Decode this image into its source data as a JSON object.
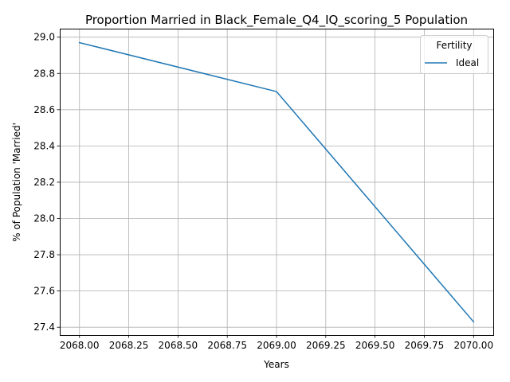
{
  "chart_data": {
    "type": "line",
    "title": "Proportion Married in Black_Female_Q4_IQ_scoring_5 Population",
    "xlabel": "Years",
    "ylabel": "% of Population 'Married'",
    "x": [
      2068,
      2069,
      2070
    ],
    "series": [
      {
        "name": "Ideal",
        "values": [
          28.97,
          28.7,
          27.43
        ],
        "color": "#1f77b4"
      }
    ],
    "xlim": [
      2067.9,
      2070.1
    ],
    "ylim": [
      27.357,
      29.047
    ],
    "x_ticks": [
      2068.0,
      2068.25,
      2068.5,
      2068.75,
      2069.0,
      2069.25,
      2069.5,
      2069.75,
      2070.0
    ],
    "x_tick_labels": [
      "2068.00",
      "2068.25",
      "2068.50",
      "2068.75",
      "2069.00",
      "2069.25",
      "2069.50",
      "2069.75",
      "2070.00"
    ],
    "y_ticks": [
      27.4,
      27.6,
      27.8,
      28.0,
      28.2,
      28.4,
      28.6,
      28.8,
      29.0
    ],
    "y_tick_labels": [
      "27.4",
      "27.6",
      "27.8",
      "28.0",
      "28.2",
      "28.4",
      "28.6",
      "28.8",
      "29.0"
    ],
    "grid": true,
    "legend": {
      "title": "Fertility",
      "placement": "top-right"
    }
  }
}
